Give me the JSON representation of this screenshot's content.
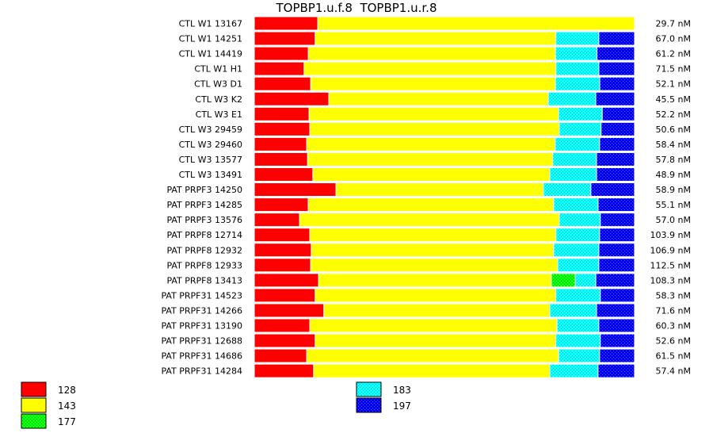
{
  "chart_data": {
    "type": "bar",
    "title": "TOPBP1.u.f.8  TOPBP1.u.r.8",
    "categories": [
      "CTL W1 13167",
      "CTL W1 14251",
      "CTL W1 14419",
      "CTL W1 H1",
      "CTL W3 D1",
      "CTL W3 K2",
      "CTL W3 E1",
      "CTL W3 29459",
      "CTL W3 29460",
      "CTL W3 13577",
      "CTL W3 13491",
      "PAT PRPF3 14250",
      "PAT PRPF3 14285",
      "PAT PRPF3 13576",
      "PAT PRPF8 12714",
      "PAT PRPF8 12932",
      "PAT PRPF8 12933",
      "PAT PRPF8 13413",
      "PAT PRPF31 14523",
      "PAT PRPF31 14266",
      "PAT PRPF31 13190",
      "PAT PRPF31 12688",
      "PAT PRPF31 14686",
      "PAT PRPF31 14284"
    ],
    "totals": [
      "29.7 nM",
      "67.0 nM",
      "61.2 nM",
      "71.5 nM",
      "52.1 nM",
      "45.5 nM",
      "52.2 nM",
      "50.6 nM",
      "58.4 nM",
      "57.8 nM",
      "48.9 nM",
      "58.9 nM",
      "55.1 nM",
      "57.0 nM",
      "103.9 nM",
      "106.9 nM",
      "112.5 nM",
      "108.3 nM",
      "58.3 nM",
      "71.6 nM",
      "60.3 nM",
      "52.6 nM",
      "61.5 nM",
      "57.4 nM"
    ],
    "series": [
      {
        "name": "128",
        "color": "#ff0000",
        "pattern": "solid",
        "values": [
          16.7,
          16.0,
          13.8,
          13.1,
          14.9,
          19.6,
          14.4,
          14.6,
          13.8,
          14.0,
          15.4,
          21.5,
          14.2,
          11.9,
          14.6,
          15.0,
          14.8,
          16.9,
          16.0,
          18.3,
          14.6,
          16.0,
          13.8,
          15.6
        ]
      },
      {
        "name": "143",
        "color": "#ffff00",
        "pattern": "solid",
        "values": [
          83.3,
          63.3,
          63.1,
          66.3,
          64.6,
          57.7,
          65.6,
          65.6,
          65.4,
          64.4,
          62.3,
          54.6,
          64.6,
          68.3,
          64.8,
          63.8,
          65.0,
          61.3,
          63.3,
          59.4,
          65.0,
          63.3,
          66.3,
          62.1
        ]
      },
      {
        "name": "177",
        "color": "#00ff00",
        "pattern": "checker",
        "values": [
          0,
          0,
          0,
          0,
          0,
          0,
          0,
          0,
          0,
          0,
          0,
          0,
          0,
          0,
          0,
          0,
          0,
          6.3,
          0,
          0,
          0,
          0,
          0,
          0
        ]
      },
      {
        "name": "183",
        "color": "#00ffff",
        "pattern": "checker",
        "values": [
          0,
          11.3,
          10.6,
          11.3,
          11.7,
          12.5,
          11.5,
          11.0,
          11.7,
          11.5,
          12.3,
          12.5,
          11.7,
          10.8,
          11.5,
          11.9,
          10.8,
          5.4,
          11.7,
          12.3,
          11.0,
          11.7,
          10.8,
          12.7
        ]
      },
      {
        "name": "197",
        "color": "#0000ff",
        "pattern": "checker",
        "values": [
          0,
          9.4,
          9.6,
          9.4,
          9.2,
          10.2,
          8.5,
          8.8,
          9.2,
          10.0,
          10.0,
          11.5,
          9.6,
          9.0,
          9.2,
          9.4,
          9.4,
          10.2,
          9.0,
          10.0,
          9.4,
          9.0,
          9.2,
          9.6
        ]
      }
    ],
    "stacked": true,
    "normalized": true,
    "orientation": "horizontal",
    "legend_position": "bottom",
    "grid": false
  }
}
